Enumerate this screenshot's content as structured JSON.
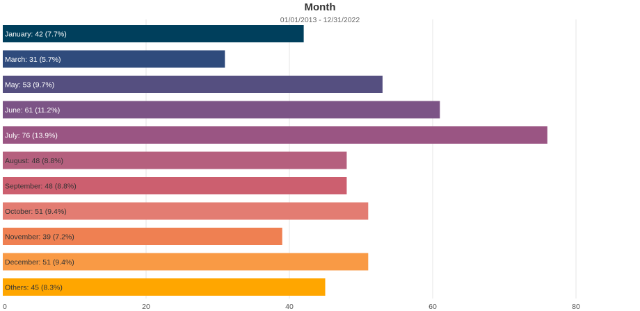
{
  "chart_data": {
    "type": "bar",
    "orientation": "horizontal",
    "title": "Month",
    "subtitle": "01/01/2013 - 12/31/2022",
    "xlabel": "",
    "ylabel": "",
    "xlim": [
      0,
      80
    ],
    "ticks": [
      "0",
      "20",
      "40",
      "60",
      "80"
    ],
    "grid": true,
    "categories": [
      "January",
      "March",
      "May",
      "June",
      "July",
      "August",
      "September",
      "October",
      "November",
      "December",
      "Others"
    ],
    "values": [
      42,
      31,
      53,
      61,
      76,
      48,
      48,
      51,
      39,
      51,
      45
    ],
    "labels": [
      "January: 42 (7.7%)",
      "March: 31 (5.7%)",
      "May: 53 (9.7%)",
      "June: 61 (11.2%)",
      "July: 76 (13.9%)",
      "August: 48 (8.8%)",
      "September: 48 (8.8%)",
      "October: 51 (9.4%)",
      "November: 39 (7.2%)",
      "December: 51 (9.4%)",
      "Others: 45 (8.3%)"
    ],
    "colors": [
      "#003f5c",
      "#2f4b7c",
      "#554f80",
      "#7c5486",
      "#9a5583",
      "#b5607e",
      "#cc5f6f",
      "#e37c72",
      "#ef8052",
      "#f99a45",
      "#ffa600"
    ],
    "label_colors": [
      "#ffffff",
      "#ffffff",
      "#ffffff",
      "#ffffff",
      "#ffffff",
      "#333333",
      "#333333",
      "#333333",
      "#333333",
      "#333333",
      "#333333"
    ]
  }
}
